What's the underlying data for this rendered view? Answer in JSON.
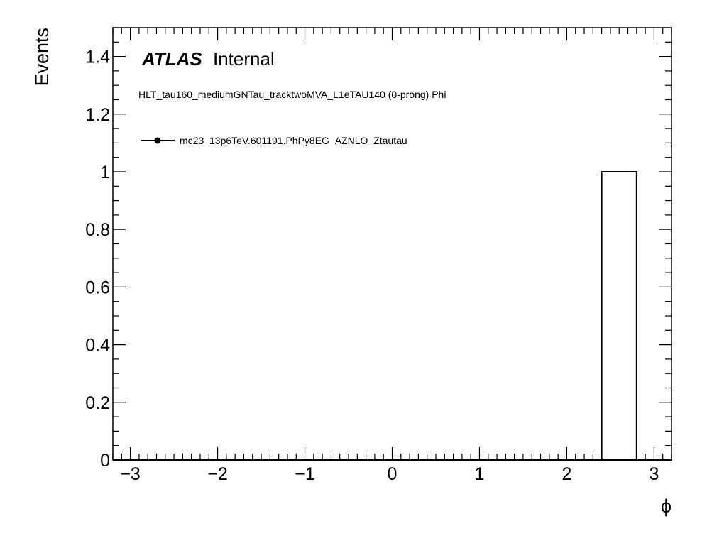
{
  "chart_data": {
    "type": "bar",
    "title": "",
    "xlabel": "ϕ",
    "ylabel": "Events",
    "xlim": [
      -3.2,
      3.2
    ],
    "ylim": [
      0,
      1.5
    ],
    "x_ticks": [
      -3,
      -2,
      -1,
      0,
      1,
      2,
      3
    ],
    "x_tick_labels": [
      "−3",
      "−2",
      "−1",
      "0",
      "1",
      "2",
      "3"
    ],
    "y_ticks": [
      0,
      0.2,
      0.4,
      0.6,
      0.8,
      1,
      1.2,
      1.4
    ],
    "y_tick_labels": [
      "0",
      "0.2",
      "0.4",
      "0.6",
      "0.8",
      "1",
      "1.2",
      "1.4"
    ],
    "bin_edges": [
      -3.2,
      -2.8,
      -2.4,
      -2.0,
      -1.6,
      -1.2,
      -0.8,
      -0.4,
      0.0,
      0.4,
      0.8,
      1.2,
      1.6,
      2.0,
      2.4,
      2.8,
      3.2
    ],
    "series": [
      {
        "name": "mc23_13p6TeV.601191.PhPy8EG_AZNLO_Ztautau",
        "values": [
          0,
          0,
          0,
          0,
          0,
          0,
          0,
          0,
          0,
          0,
          0,
          0,
          0,
          0,
          1,
          0
        ],
        "color": "#000000"
      }
    ],
    "grid": false,
    "legend_position": "top-left"
  },
  "annotations": {
    "atlas": "ATLAS",
    "internal": "Internal",
    "subtitle": "HLT_tau160_mediumGNTau_tracktwoMVA_L1eTAU140 (0-prong) Phi"
  }
}
